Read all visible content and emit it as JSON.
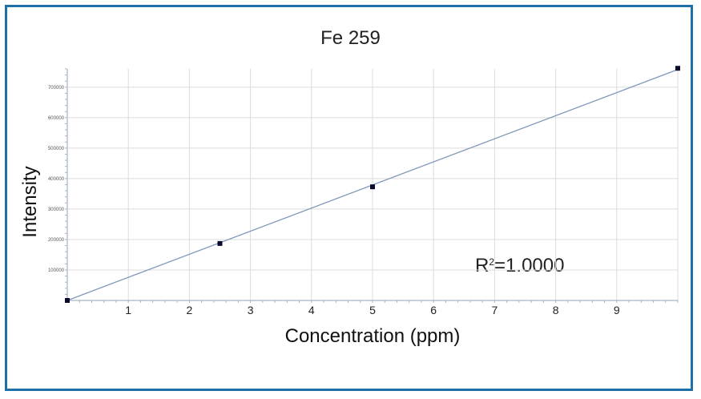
{
  "chart_data": {
    "type": "scatter",
    "title": "Fe 259",
    "xlabel": "Concentration (ppm)",
    "ylabel": "Intensity",
    "xlim": [
      0,
      10
    ],
    "ylim": [
      0,
      760000
    ],
    "x_ticks": [
      1,
      2,
      3,
      4,
      5,
      6,
      7,
      8,
      9
    ],
    "x_tick_labels": [
      "1",
      "2",
      "3",
      "4",
      "5",
      "6",
      "7",
      "8",
      "9"
    ],
    "y_ticks": [
      100000,
      200000,
      300000,
      400000,
      500000,
      600000,
      700000
    ],
    "y_tick_labels": [
      "100000",
      "200000",
      "300000",
      "400000",
      "500000",
      "600000",
      "700000"
    ],
    "grid": true,
    "series": [
      {
        "x": [
          0,
          2.5,
          5,
          10
        ],
        "y": [
          0,
          187000,
          373000,
          762000
        ],
        "marker_color": "#0a0a2a"
      }
    ],
    "fit_line": {
      "x": [
        0,
        10
      ],
      "y": [
        0,
        758000
      ],
      "color": "#7f97b8"
    },
    "annotation": {
      "prefix": "R",
      "superscript": "2",
      "suffix": "=1.0000"
    }
  },
  "colors": {
    "frame": "#1f6fa8",
    "grid": "#dcdcdc",
    "axis": "#a8b4c8"
  }
}
